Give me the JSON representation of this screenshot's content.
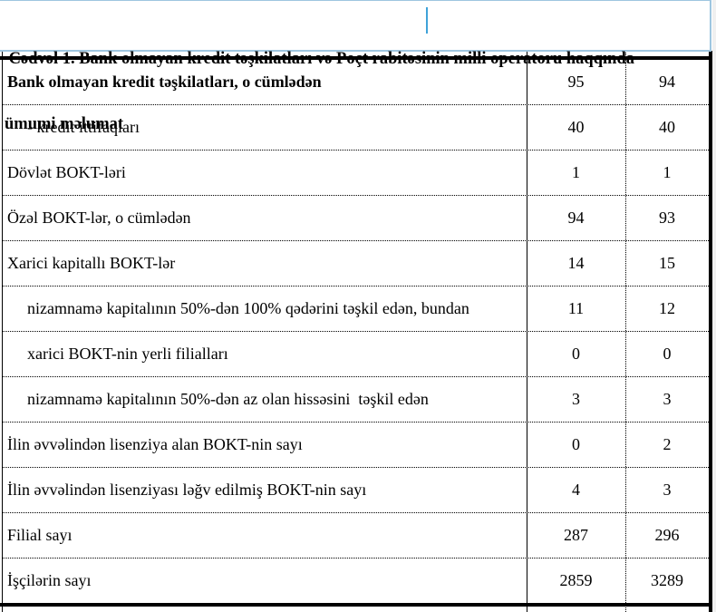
{
  "title": {
    "lines": [
      " Cədvəl 1. Bank olmayan kredit təşkilatları və Poçt rabitəsinin milli operatoru haqqında",
      "ümumi məlumat"
    ],
    "full_text": "Cədvəl 1. Bank olmayan kredit təşkilatları və Poçt rabitəsinin milli operatoru haqqında ümumi məlumat"
  },
  "table": {
    "rows": [
      {
        "label": "Bank olmayan kredit təşkilatları, o cümlədən",
        "bold": true,
        "indent": false,
        "values": [
          "95",
          "94"
        ]
      },
      {
        "label": "- kredit ittifaqları",
        "bold": false,
        "indent": true,
        "values": [
          "40",
          "40"
        ]
      },
      {
        "label": "Dövlət BOKT-ləri",
        "bold": false,
        "indent": false,
        "values": [
          "1",
          "1"
        ]
      },
      {
        "label": "Özəl BOKT-lər, o cümlədən",
        "bold": false,
        "indent": false,
        "values": [
          "94",
          "93"
        ]
      },
      {
        "label": "Xarici kapitallı BOKT-lər",
        "bold": false,
        "indent": false,
        "values": [
          "14",
          "15"
        ]
      },
      {
        "label": "nizamnamə kapitalının 50%-dən 100% qədərini təşkil edən, bundan",
        "bold": false,
        "indent": true,
        "values": [
          "11",
          "12"
        ]
      },
      {
        "label": "xarici BOKT-nin yerli filialları",
        "bold": false,
        "indent": true,
        "values": [
          "0",
          "0"
        ]
      },
      {
        "label": "nizamnamə kapitalının 50%-dən az olan hissəsini  təşkil edən",
        "bold": false,
        "indent": true,
        "values": [
          "3",
          "3"
        ]
      },
      {
        "label": "İlin əvvəlindən lisenziya alan BOKT-nin sayı",
        "bold": false,
        "indent": false,
        "values": [
          "0",
          "2"
        ]
      },
      {
        "label": "İlin əvvəlindən lisenziyası ləğv edilmiş BOKT-nin sayı",
        "bold": false,
        "indent": false,
        "values": [
          "4",
          "3"
        ]
      },
      {
        "label": "Filial sayı",
        "bold": false,
        "indent": false,
        "values": [
          "287",
          "296"
        ]
      },
      {
        "label": "İşçilərin sayı",
        "bold": false,
        "indent": false,
        "values": [
          "2859",
          "3289"
        ]
      }
    ]
  },
  "colors": {
    "title_frame_border": "#9fc6e0",
    "text_caret": "#3fa3d9",
    "table_lines": "#000000",
    "page_background": "#ffffff",
    "right_gutter": "#f0f0f0"
  }
}
